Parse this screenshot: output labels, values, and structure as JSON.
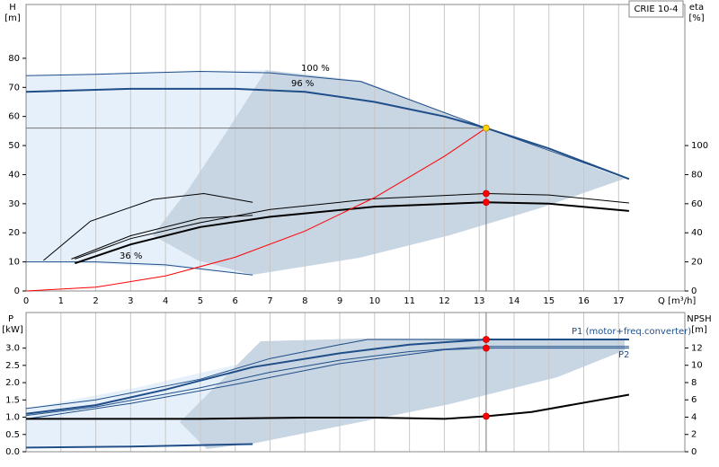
{
  "chart_data": [
    {
      "type": "line",
      "title": "CRIE 10-4",
      "ylabel": "H",
      "yunit": "[m]",
      "y2label": "eta",
      "y2unit": "[%]",
      "xlabel": "Q [m³/h]",
      "xlim": [
        0,
        18.9
      ],
      "xticks": [
        0,
        1,
        2,
        3,
        4,
        5,
        6,
        7,
        8,
        9,
        10,
        11,
        12,
        13,
        14,
        15,
        16,
        17
      ],
      "ylim": [
        0,
        98.5
      ],
      "yticks": [
        0,
        10,
        20,
        30,
        40,
        50,
        60,
        70,
        80
      ],
      "y2lim": [
        0,
        197
      ],
      "y2ticks": [
        0,
        20,
        40,
        60,
        80,
        100
      ],
      "grid": "x",
      "series": [
        {
          "name": "100 %",
          "color": "#1f4e89",
          "width": 1,
          "x": [
            0,
            2,
            5,
            7,
            9.6,
            13.2,
            17.3
          ],
          "values": [
            74,
            74.5,
            75.5,
            75,
            72,
            56,
            38.5
          ]
        },
        {
          "name": "96 %",
          "color": "#1f4e89",
          "width": 2,
          "x": [
            0,
            3,
            6,
            8,
            10,
            12,
            13.2,
            15,
            17.3
          ],
          "values": [
            68.5,
            69.5,
            69.5,
            68.5,
            65,
            60,
            56,
            49,
            38.5
          ]
        },
        {
          "name": "36 %",
          "color": "#1f4e89",
          "width": 1,
          "x": [
            0,
            2,
            4,
            6.5
          ],
          "values": [
            10,
            10,
            9,
            5.5
          ]
        },
        {
          "color": "#000000",
          "width": 1,
          "axis": "y2",
          "x": [
            0.5,
            1.85,
            3.65,
            5.1,
            6.5
          ],
          "values": [
            21,
            48,
            63,
            67,
            61
          ]
        },
        {
          "color": "#000000",
          "width": 1,
          "axis": "y2",
          "x": [
            1.3,
            3,
            5,
            6.5
          ],
          "values": [
            22,
            38,
            50,
            52
          ]
        },
        {
          "color": "#000000",
          "width": 1,
          "axis": "y2",
          "x": [
            1.4,
            3,
            5,
            7,
            10,
            13.2,
            15,
            17.3
          ],
          "values": [
            22,
            36,
            47,
            56,
            63.5,
            67,
            66,
            60.5
          ]
        },
        {
          "color": "#000000",
          "width": 2,
          "axis": "y2",
          "x": [
            1.4,
            3,
            5,
            7,
            10,
            13.2,
            15,
            17.3
          ],
          "values": [
            19,
            32,
            44,
            51,
            58,
            61,
            60,
            55
          ]
        },
        {
          "color": "#ff0000",
          "width": 1,
          "x": [
            0,
            2,
            4,
            6,
            8,
            10,
            12,
            13.2
          ],
          "values": [
            0,
            1.3,
            5.2,
            11.6,
            20.6,
            32.1,
            46.3,
            56
          ]
        }
      ],
      "markers": [
        {
          "x": 13.2,
          "y": 56,
          "color": "#ffd700"
        },
        {
          "x": 13.2,
          "y": 67,
          "axis": "y2",
          "color": "#ff0000"
        },
        {
          "x": 13.2,
          "y": 61,
          "axis": "y2",
          "color": "#ff0000"
        }
      ]
    },
    {
      "type": "line",
      "ylabel": "P",
      "yunit": "[kW]",
      "y2label": "NPSH",
      "y2unit": "[m]",
      "xlim": [
        0,
        18.9
      ],
      "ylim": [
        0,
        4.03
      ],
      "yticks": [
        {
          "value": 0,
          "label": "0.0"
        },
        {
          "value": 0.5,
          "label": "0.5"
        },
        {
          "value": 1,
          "label": "1.0"
        },
        {
          "value": 1.5,
          "label": "1.5"
        },
        {
          "value": 2,
          "label": "2.0"
        },
        {
          "value": 2.5,
          "label": "2.5"
        },
        {
          "value": 3,
          "label": "3.0"
        }
      ],
      "y2lim": [
        0,
        16.1
      ],
      "y2ticks": [
        0,
        2,
        4,
        6,
        8,
        10,
        12
      ],
      "grid": "x",
      "series": [
        {
          "color": "#1f4e89",
          "width": 1,
          "x": [
            0,
            2,
            5,
            7,
            9,
            9.8,
            17.3
          ],
          "values": [
            1.25,
            1.5,
            2.1,
            2.7,
            3.1,
            3.25,
            3.25
          ]
        },
        {
          "name": "P1 (motor+freq.converter)",
          "color": "#1f4e89",
          "width": 2,
          "x": [
            0,
            2,
            4,
            6.5,
            9,
            11,
            13.2,
            17.3
          ],
          "values": [
            1.1,
            1.35,
            1.8,
            2.45,
            2.85,
            3.1,
            3.25,
            3.25
          ]
        },
        {
          "color": "#1f4e89",
          "width": 1,
          "x": [
            0,
            2,
            5,
            7,
            9,
            11,
            13.2,
            17.3
          ],
          "values": [
            1.05,
            1.3,
            1.85,
            2.3,
            2.65,
            2.9,
            3.05,
            3.05
          ]
        },
        {
          "name": "P2",
          "color": "#1f4e89",
          "width": 1,
          "x": [
            0,
            3,
            6,
            9,
            12,
            13.2,
            17.3
          ],
          "values": [
            0.95,
            1.4,
            1.95,
            2.55,
            2.95,
            3,
            3
          ]
        },
        {
          "color": "#1f4e89",
          "width": 2,
          "x": [
            0,
            3,
            6.5
          ],
          "values": [
            0.12,
            0.15,
            0.22
          ]
        },
        {
          "color": "#000000",
          "width": 2,
          "axis": "y2",
          "x": [
            0,
            5,
            8,
            10,
            12,
            13.2,
            14.5,
            17.3
          ],
          "values": [
            3.8,
            3.8,
            3.95,
            3.95,
            3.8,
            4.1,
            4.6,
            6.6
          ]
        }
      ],
      "markers": [
        {
          "x": 13.2,
          "y": 3.25,
          "color": "#ff0000"
        },
        {
          "x": 13.2,
          "y": 3,
          "color": "#ff0000"
        },
        {
          "x": 13.2,
          "y": 4.1,
          "axis": "y2",
          "color": "#ff0000"
        }
      ]
    }
  ]
}
